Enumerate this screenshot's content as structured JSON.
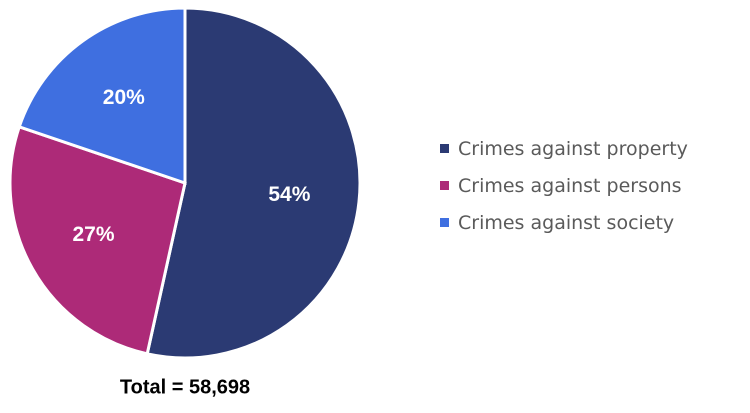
{
  "chart_data": {
    "type": "pie",
    "categories": [
      "Crimes against property",
      "Crimes against persons",
      "Crimes against society"
    ],
    "values": [
      54,
      27,
      20
    ],
    "labels": [
      "54%",
      "27%",
      "20%"
    ],
    "colors": [
      "#2b3a73",
      "#ad2a78",
      "#3f6fe0"
    ],
    "legend_position": "right",
    "footer": "Total = 58,698"
  }
}
